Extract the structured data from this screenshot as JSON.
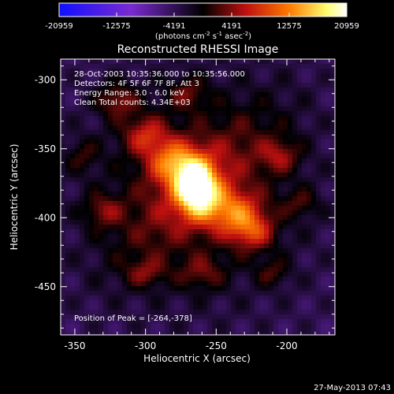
{
  "colorbar": {
    "tick_labels": [
      "-20959",
      "-12575",
      "-4191",
      "4191",
      "12575",
      "20959"
    ],
    "tick_values": [
      -20959,
      -12575,
      -4191,
      4191,
      12575,
      20959
    ],
    "range": [
      -20959,
      20959
    ],
    "unit_prefix": "(photons cm",
    "unit_sup1": "-2",
    "unit_mid": " s",
    "unit_sup2": "-1",
    "unit_mid2": " asec",
    "unit_sup3": "-2",
    "unit_suffix": ")",
    "colors": {
      "neg_low": "#1010ff",
      "neg_mid": "#7a2ad0",
      "zero": "#000000",
      "pos_low": "#c01010",
      "pos_mid": "#ff7a00",
      "pos_high": "#ffff70",
      "pos_max": "#ffffff"
    }
  },
  "image": {
    "title": "Reconstructed RHESSI Image",
    "annotation_lines": [
      "28-Oct-2003 10:35:36.000 to 10:35:56.000",
      "Detectors: 4F 5F 6F 7F 8F, Att 3",
      "Energy Range: 3.0 - 6.0 keV",
      "Clean    Total counts: 4.34E+03"
    ],
    "peak_label": "Position of Peak = [-264,-378]",
    "x_axis_label": "Heliocentric X (arcsec)",
    "y_axis_label": "Heliocentric Y (arcsec)",
    "x_tick_labels": [
      "-350",
      "-300",
      "-250",
      "-200"
    ],
    "x_tick_values": [
      -350,
      -300,
      -250,
      -200
    ],
    "y_tick_labels": [
      "-300",
      "-350",
      "-400",
      "-450"
    ],
    "y_tick_values": [
      -300,
      -350,
      -400,
      -450
    ],
    "x_range": [
      -360,
      -166
    ],
    "y_range": [
      -485,
      -285
    ],
    "peak": [
      -264,
      -378
    ]
  },
  "footer": {
    "timestamp": "27-May-2013 07:43"
  }
}
